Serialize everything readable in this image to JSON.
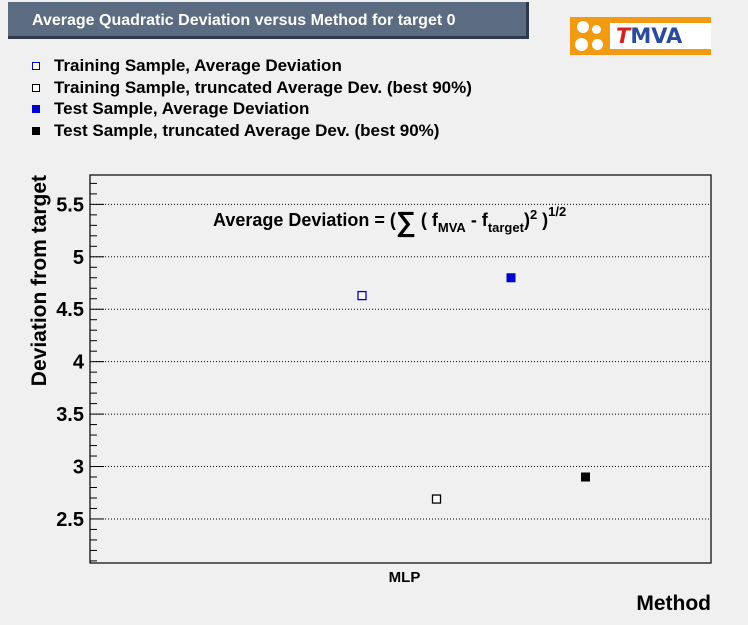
{
  "title": "Average Quadratic Deviation versus Method for target 0",
  "logo": {
    "text_t": "T",
    "text_rest": "MVA",
    "colors": {
      "orange": "#f29a12",
      "red": "#d6201f",
      "blue": "#2a4a9e"
    }
  },
  "legend": [
    {
      "label": "Training Sample, Average Deviation",
      "marker": "open-square",
      "color": "#0000cc"
    },
    {
      "label": "Training Sample, truncated Average Dev. (best 90%)",
      "marker": "open-square",
      "color": "#000000"
    },
    {
      "label": "Test Sample, Average Deviation",
      "marker": "filled-square",
      "color": "#0000cc"
    },
    {
      "label": "Test Sample, truncated Average Dev. (best 90%)",
      "marker": "filled-square",
      "color": "#000000"
    }
  ],
  "formula": {
    "lead": "Average Deviation = (",
    "sigma": "∑",
    "open": " (  f",
    "sub_mva": "MVA",
    "minus": " - f",
    "sub_target": "target",
    "close": ")",
    "sup_2": "2",
    "tail": " )",
    "sup_half": "1/2"
  },
  "chart_data": {
    "type": "scatter",
    "title": "Average Quadratic Deviation versus Method for target 0",
    "xlabel": "Method",
    "ylabel": "Deviation from target",
    "categories": [
      "MLP"
    ],
    "ylim": [
      2.08,
      5.78
    ],
    "yticks": [
      2.5,
      3,
      3.5,
      4,
      4.5,
      5,
      5.5
    ],
    "ytick_labels": [
      "2.5",
      "3",
      "3.5",
      "4",
      "4.5",
      "5",
      "5.5"
    ],
    "grid": true,
    "series": [
      {
        "name": "Training Sample, Average Deviation",
        "category": "MLP",
        "offset": 0,
        "y": 4.63,
        "marker": "open-square",
        "color": "#0000cc"
      },
      {
        "name": "Training Sample, truncated Average Dev. (best 90%)",
        "category": "MLP",
        "offset": 1,
        "y": 2.69,
        "marker": "open-square",
        "color": "#000000"
      },
      {
        "name": "Test Sample, Average Deviation",
        "category": "MLP",
        "offset": 2,
        "y": 4.8,
        "marker": "filled-square",
        "color": "#0000cc"
      },
      {
        "name": "Test Sample, truncated Average Dev. (best 90%)",
        "category": "MLP",
        "offset": 3,
        "y": 2.9,
        "marker": "filled-square",
        "color": "#000000"
      }
    ]
  }
}
